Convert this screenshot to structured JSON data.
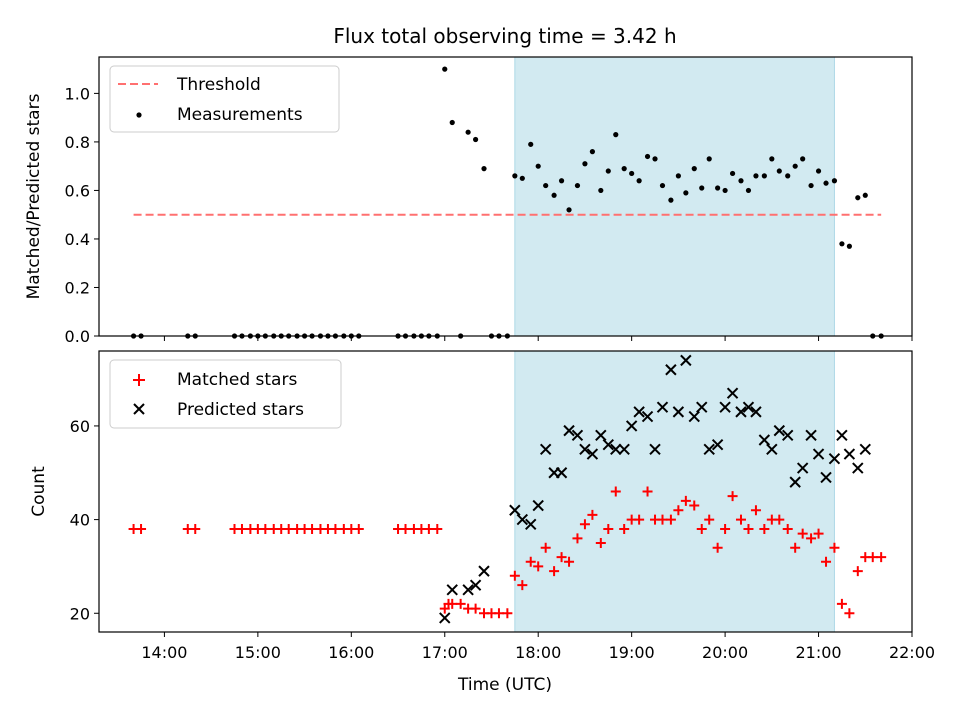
{
  "figure_title": "Flux total observing time = 3.42 h",
  "chart_data": [
    {
      "type": "scatter",
      "ylabel": "Matched/Predicted stars",
      "xlabel": "",
      "x_range_hours": [
        13.3,
        22.0
      ],
      "ylim": [
        0,
        1.15
      ],
      "yticks": [
        "0.0",
        "0.2",
        "0.4",
        "0.6",
        "0.8",
        "1.0"
      ],
      "yticks_values": [
        0,
        0.2,
        0.4,
        0.6,
        0.8,
        1.0
      ],
      "shaded_span": [
        17.75,
        21.17
      ],
      "shade_color": "#add8e6",
      "legend": {
        "location": "upper-left",
        "entries": [
          "Threshold",
          "Measurements"
        ]
      },
      "threshold": {
        "name": "Threshold",
        "value": 0.5,
        "x": [
          13.67,
          21.67
        ],
        "color": "#ff7070"
      },
      "measurements": {
        "name": "Measurements",
        "color": "#000000",
        "points": [
          [
            13.67,
            0
          ],
          [
            13.75,
            0
          ],
          [
            14.25,
            0
          ],
          [
            14.33,
            0
          ],
          [
            14.75,
            0
          ],
          [
            14.83,
            0
          ],
          [
            14.92,
            0
          ],
          [
            15.0,
            0
          ],
          [
            15.08,
            0
          ],
          [
            15.17,
            0
          ],
          [
            15.25,
            0
          ],
          [
            15.33,
            0
          ],
          [
            15.42,
            0
          ],
          [
            15.5,
            0
          ],
          [
            15.58,
            0
          ],
          [
            15.67,
            0
          ],
          [
            15.75,
            0
          ],
          [
            15.83,
            0
          ],
          [
            15.92,
            0
          ],
          [
            16.0,
            0
          ],
          [
            16.08,
            0
          ],
          [
            16.5,
            0
          ],
          [
            16.58,
            0
          ],
          [
            16.67,
            0
          ],
          [
            16.75,
            0
          ],
          [
            16.83,
            0
          ],
          [
            16.92,
            0
          ],
          [
            17.0,
            1.1
          ],
          [
            17.08,
            0.88
          ],
          [
            17.17,
            0
          ],
          [
            17.25,
            0.84
          ],
          [
            17.33,
            0.81
          ],
          [
            17.42,
            0.69
          ],
          [
            17.5,
            0
          ],
          [
            17.58,
            0
          ],
          [
            17.67,
            0
          ],
          [
            17.75,
            0.66
          ],
          [
            17.83,
            0.65
          ],
          [
            17.92,
            0.79
          ],
          [
            18.0,
            0.7
          ],
          [
            18.08,
            0.62
          ],
          [
            18.17,
            0.58
          ],
          [
            18.25,
            0.64
          ],
          [
            18.33,
            0.52
          ],
          [
            18.42,
            0.62
          ],
          [
            18.5,
            0.71
          ],
          [
            18.58,
            0.76
          ],
          [
            18.67,
            0.6
          ],
          [
            18.75,
            0.68
          ],
          [
            18.83,
            0.83
          ],
          [
            18.92,
            0.69
          ],
          [
            19.0,
            0.67
          ],
          [
            19.08,
            0.64
          ],
          [
            19.17,
            0.74
          ],
          [
            19.25,
            0.73
          ],
          [
            19.33,
            0.62
          ],
          [
            19.42,
            0.56
          ],
          [
            19.5,
            0.66
          ],
          [
            19.58,
            0.59
          ],
          [
            19.67,
            0.69
          ],
          [
            19.75,
            0.61
          ],
          [
            19.83,
            0.73
          ],
          [
            19.92,
            0.61
          ],
          [
            20.0,
            0.6
          ],
          [
            20.08,
            0.67
          ],
          [
            20.17,
            0.64
          ],
          [
            20.25,
            0.6
          ],
          [
            20.33,
            0.66
          ],
          [
            20.42,
            0.66
          ],
          [
            20.5,
            0.73
          ],
          [
            20.58,
            0.68
          ],
          [
            20.67,
            0.66
          ],
          [
            20.75,
            0.7
          ],
          [
            20.83,
            0.73
          ],
          [
            20.92,
            0.62
          ],
          [
            21.0,
            0.68
          ],
          [
            21.08,
            0.63
          ],
          [
            21.17,
            0.64
          ],
          [
            21.25,
            0.38
          ],
          [
            21.33,
            0.37
          ],
          [
            21.42,
            0.57
          ],
          [
            21.5,
            0.58
          ],
          [
            21.58,
            0
          ],
          [
            21.67,
            0
          ]
        ]
      }
    },
    {
      "type": "scatter",
      "ylabel": "Count",
      "xlabel": "Time (UTC)",
      "x_range_hours": [
        13.3,
        22.0
      ],
      "xticks": [
        "14:00",
        "15:00",
        "16:00",
        "17:00",
        "18:00",
        "19:00",
        "20:00",
        "21:00",
        "22:00"
      ],
      "xticks_hours": [
        14,
        15,
        16,
        17,
        18,
        19,
        20,
        21,
        22
      ],
      "ylim": [
        16,
        76
      ],
      "yticks": [
        "20",
        "40",
        "60"
      ],
      "yticks_values": [
        20,
        40,
        60
      ],
      "shaded_span": [
        17.75,
        21.17
      ],
      "shade_color": "#add8e6",
      "legend": {
        "location": "upper-left",
        "entries": [
          "Matched stars",
          "Predicted stars"
        ]
      },
      "series": [
        {
          "name": "Matched stars",
          "marker": "plus",
          "color": "#ff0000",
          "points": [
            [
              13.67,
              38
            ],
            [
              13.75,
              38
            ],
            [
              14.25,
              38
            ],
            [
              14.33,
              38
            ],
            [
              14.75,
              38
            ],
            [
              14.83,
              38
            ],
            [
              14.92,
              38
            ],
            [
              15.0,
              38
            ],
            [
              15.08,
              38
            ],
            [
              15.17,
              38
            ],
            [
              15.25,
              38
            ],
            [
              15.33,
              38
            ],
            [
              15.42,
              38
            ],
            [
              15.5,
              38
            ],
            [
              15.58,
              38
            ],
            [
              15.67,
              38
            ],
            [
              15.75,
              38
            ],
            [
              15.83,
              38
            ],
            [
              15.92,
              38
            ],
            [
              16.0,
              38
            ],
            [
              16.08,
              38
            ],
            [
              16.5,
              38
            ],
            [
              16.58,
              38
            ],
            [
              16.67,
              38
            ],
            [
              16.75,
              38
            ],
            [
              16.83,
              38
            ],
            [
              16.92,
              38
            ],
            [
              17.0,
              21
            ],
            [
              17.04,
              22
            ],
            [
              17.08,
              22
            ],
            [
              17.17,
              22
            ],
            [
              17.25,
              21
            ],
            [
              17.33,
              21
            ],
            [
              17.42,
              20
            ],
            [
              17.5,
              20
            ],
            [
              17.58,
              20
            ],
            [
              17.67,
              20
            ],
            [
              17.75,
              28
            ],
            [
              17.83,
              26
            ],
            [
              17.92,
              31
            ],
            [
              18.0,
              30
            ],
            [
              18.08,
              34
            ],
            [
              18.17,
              29
            ],
            [
              18.25,
              32
            ],
            [
              18.33,
              31
            ],
            [
              18.42,
              36
            ],
            [
              18.5,
              39
            ],
            [
              18.58,
              41
            ],
            [
              18.67,
              35
            ],
            [
              18.75,
              38
            ],
            [
              18.83,
              46
            ],
            [
              18.92,
              38
            ],
            [
              19.0,
              40
            ],
            [
              19.08,
              40
            ],
            [
              19.17,
              46
            ],
            [
              19.25,
              40
            ],
            [
              19.33,
              40
            ],
            [
              19.42,
              40
            ],
            [
              19.5,
              42
            ],
            [
              19.58,
              44
            ],
            [
              19.67,
              43
            ],
            [
              19.75,
              38
            ],
            [
              19.83,
              40
            ],
            [
              19.92,
              34
            ],
            [
              20.0,
              38
            ],
            [
              20.08,
              45
            ],
            [
              20.17,
              40
            ],
            [
              20.25,
              38
            ],
            [
              20.33,
              42
            ],
            [
              20.42,
              38
            ],
            [
              20.5,
              40
            ],
            [
              20.58,
              40
            ],
            [
              20.67,
              38
            ],
            [
              20.75,
              34
            ],
            [
              20.83,
              37
            ],
            [
              20.92,
              36
            ],
            [
              21.0,
              37
            ],
            [
              21.08,
              31
            ],
            [
              21.17,
              34
            ],
            [
              21.25,
              22
            ],
            [
              21.33,
              20
            ],
            [
              21.42,
              29
            ],
            [
              21.5,
              32
            ],
            [
              21.58,
              32
            ],
            [
              21.67,
              32
            ]
          ]
        },
        {
          "name": "Predicted stars",
          "marker": "x",
          "color": "#000000",
          "points": [
            [
              17.0,
              19
            ],
            [
              17.08,
              25
            ],
            [
              17.25,
              25
            ],
            [
              17.33,
              26
            ],
            [
              17.42,
              29
            ],
            [
              17.75,
              42
            ],
            [
              17.83,
              40
            ],
            [
              17.92,
              39
            ],
            [
              18.0,
              43
            ],
            [
              18.08,
              55
            ],
            [
              18.17,
              50
            ],
            [
              18.25,
              50
            ],
            [
              18.33,
              59
            ],
            [
              18.42,
              58
            ],
            [
              18.5,
              55
            ],
            [
              18.58,
              54
            ],
            [
              18.67,
              58
            ],
            [
              18.75,
              56
            ],
            [
              18.83,
              55
            ],
            [
              18.92,
              55
            ],
            [
              19.0,
              60
            ],
            [
              19.08,
              63
            ],
            [
              19.17,
              62
            ],
            [
              19.25,
              55
            ],
            [
              19.33,
              64
            ],
            [
              19.42,
              72
            ],
            [
              19.5,
              63
            ],
            [
              19.58,
              74
            ],
            [
              19.67,
              62
            ],
            [
              19.75,
              64
            ],
            [
              19.83,
              55
            ],
            [
              19.92,
              56
            ],
            [
              20.0,
              64
            ],
            [
              20.08,
              67
            ],
            [
              20.17,
              63
            ],
            [
              20.25,
              64
            ],
            [
              20.33,
              63
            ],
            [
              20.42,
              57
            ],
            [
              20.5,
              55
            ],
            [
              20.58,
              59
            ],
            [
              20.67,
              58
            ],
            [
              20.75,
              48
            ],
            [
              20.83,
              51
            ],
            [
              20.92,
              58
            ],
            [
              21.0,
              54
            ],
            [
              21.08,
              49
            ],
            [
              21.17,
              53
            ],
            [
              21.25,
              58
            ],
            [
              21.33,
              54
            ],
            [
              21.42,
              51
            ],
            [
              21.5,
              55
            ]
          ]
        }
      ]
    }
  ]
}
